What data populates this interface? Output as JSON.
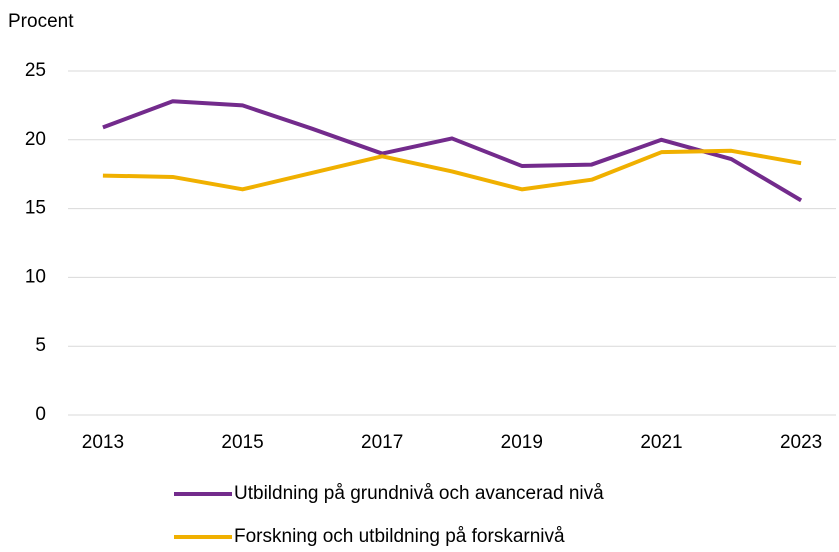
{
  "chart_data": {
    "type": "line",
    "y_label": "Procent",
    "categories": [
      "2013",
      null,
      "2015",
      null,
      "2017",
      null,
      "2019",
      null,
      "2021",
      null,
      "2023"
    ],
    "series": [
      {
        "name": "Utbildning på grundnivå och avancerad nivå",
        "color": "#732b8c",
        "values": [
          20.9,
          22.8,
          22.5,
          20.8,
          19.0,
          20.1,
          18.1,
          18.2,
          20.0,
          18.6,
          15.6
        ]
      },
      {
        "name": "Forskning och utbildning på forskarnivå",
        "color": "#f0b000",
        "values": [
          17.4,
          17.3,
          16.4,
          17.6,
          18.8,
          17.7,
          16.4,
          17.1,
          19.1,
          19.2,
          18.3
        ]
      }
    ],
    "ylim": [
      0,
      25
    ],
    "yticks": [
      0,
      5,
      10,
      15,
      20,
      25
    ],
    "grid": true
  }
}
